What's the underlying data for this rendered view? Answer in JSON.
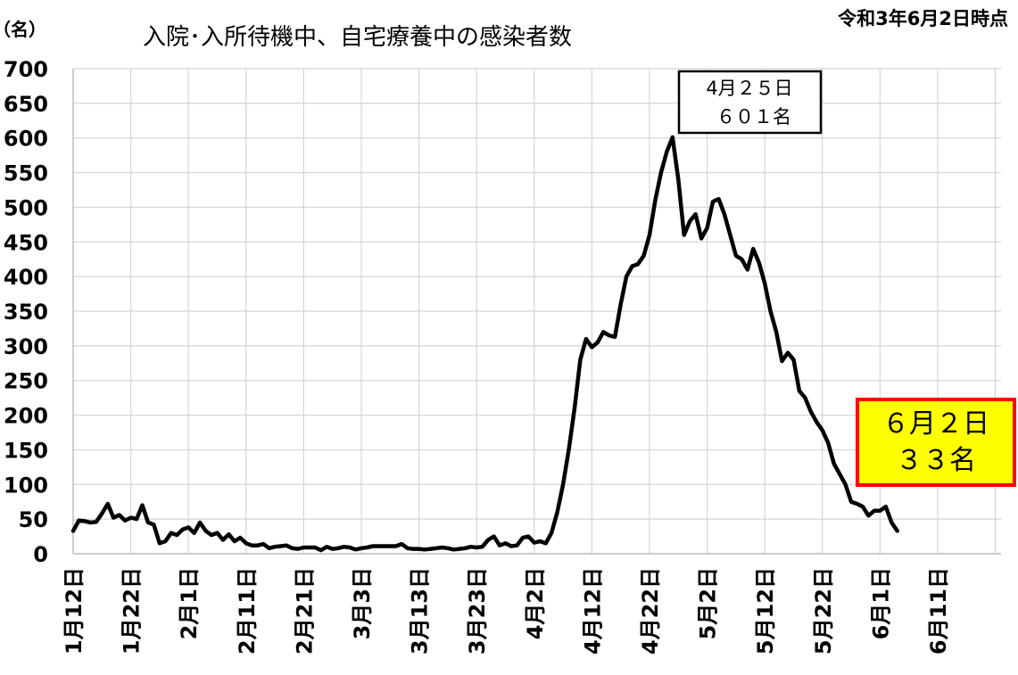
{
  "chart_data": {
    "type": "line",
    "title": "入院･入所待機中、自宅療養中の感染者数",
    "as_of": "令和3年6月2日時点",
    "ylabel": "（名）",
    "xlabel": "",
    "ylim": [
      0,
      700
    ],
    "yticks": [
      0,
      50,
      100,
      150,
      200,
      250,
      300,
      350,
      400,
      450,
      500,
      550,
      600,
      650,
      700
    ],
    "x_start": "1月12日",
    "x_end": "6月21日",
    "xtick_labels": [
      "1月12日",
      "1月22日",
      "2月1日",
      "2月11日",
      "2月21日",
      "3月3日",
      "3月13日",
      "3月23日",
      "4月2日",
      "4月12日",
      "4月22日",
      "5月2日",
      "5月12日",
      "5月22日",
      "6月1日",
      "6月11日"
    ],
    "grid": true,
    "legend": "none",
    "line_color": "#000000",
    "annotations": [
      {
        "line1": "4月２５日",
        "line2": "６０１名",
        "style": "boxed"
      },
      {
        "line1": "６月２日",
        "line2": "３３名",
        "style": "highlight",
        "fill": "#ffff00",
        "border": "#ff0000"
      }
    ],
    "series": [
      {
        "values": [
          33,
          48,
          47,
          45,
          46,
          58,
          72,
          52,
          56,
          48,
          52,
          50,
          70,
          45,
          42,
          15,
          18,
          30,
          27,
          35,
          38,
          30,
          45,
          33,
          27,
          30,
          20,
          28,
          18,
          23,
          15,
          12,
          12,
          14,
          8,
          10,
          11,
          12,
          8,
          7,
          9,
          9,
          9,
          5,
          10,
          7,
          8,
          10,
          9,
          6,
          8,
          9,
          11,
          11,
          11,
          11,
          11,
          14,
          8,
          7,
          7,
          6,
          7,
          8,
          9,
          8,
          6,
          7,
          8,
          10,
          9,
          10,
          20,
          25,
          12,
          15,
          11,
          12,
          23,
          25,
          16,
          18,
          15,
          30,
          60,
          100,
          150,
          210,
          280,
          310,
          298,
          305,
          320,
          315,
          313,
          360,
          400,
          415,
          418,
          430,
          460,
          510,
          550,
          580,
          601,
          540,
          460,
          480,
          490,
          455,
          470,
          508,
          512,
          490,
          460,
          430,
          425,
          410,
          440,
          420,
          390,
          350,
          320,
          278,
          290,
          280,
          235,
          225,
          205,
          190,
          178,
          160,
          130,
          115,
          100,
          75,
          72,
          68,
          55,
          62,
          62,
          68,
          45,
          33
        ]
      }
    ]
  }
}
